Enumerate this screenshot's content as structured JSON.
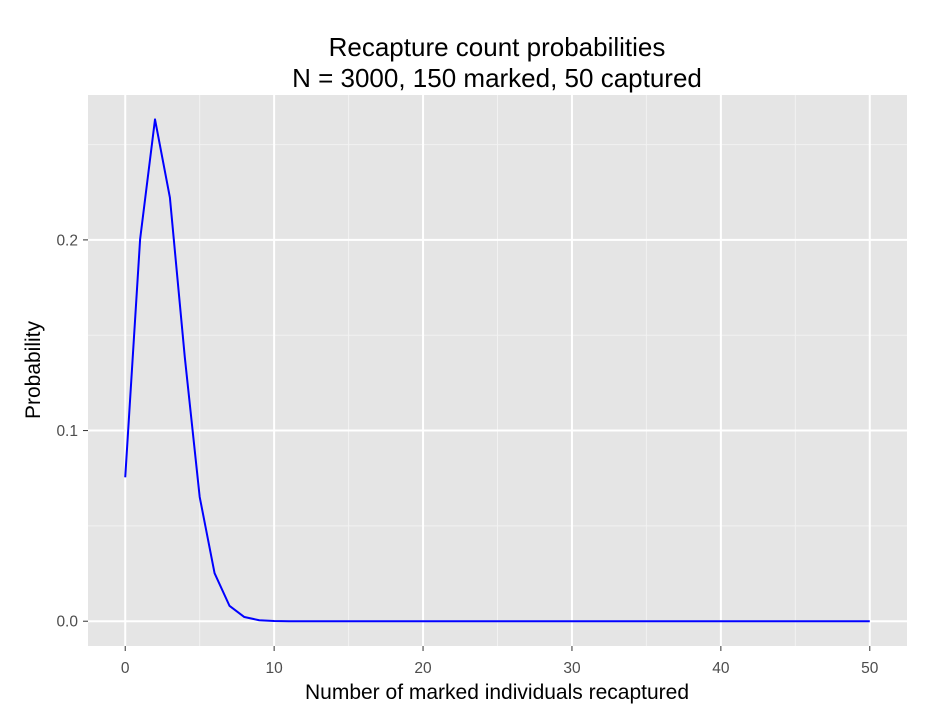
{
  "chart_data": {
    "type": "line",
    "title_lines": [
      "Recapture count probabilities",
      "N = 3000, 150 marked, 50 captured"
    ],
    "xlabel": "Number of marked individuals recaptured",
    "ylabel": "Probability",
    "xlim": [
      -2.5,
      52.5
    ],
    "ylim": [
      -0.013,
      0.276
    ],
    "x_ticks": [
      0,
      10,
      20,
      30,
      40,
      50
    ],
    "x_tick_labels": [
      "0",
      "10",
      "20",
      "30",
      "40",
      "50"
    ],
    "y_ticks": [
      0.0,
      0.1,
      0.2
    ],
    "y_tick_labels": [
      "0.0",
      "0.1",
      "0.2"
    ],
    "x_minor_ticks": [
      5,
      15,
      25,
      35,
      45
    ],
    "y_minor_ticks": [
      0.05,
      0.15,
      0.25
    ],
    "grid": true,
    "series": [
      {
        "color": "#0000ff",
        "x": [
          0,
          1,
          2,
          3,
          4,
          5,
          6,
          7,
          8,
          9,
          10,
          11,
          12,
          13,
          14,
          15,
          16,
          17,
          18,
          19,
          20,
          21,
          22,
          23,
          24,
          25,
          26,
          27,
          28,
          29,
          30,
          31,
          32,
          33,
          34,
          35,
          36,
          37,
          38,
          39,
          40,
          41,
          42,
          43,
          44,
          45,
          46,
          47,
          48,
          49,
          50
        ],
        "y": [
          0.0755,
          0.2004,
          0.2632,
          0.2222,
          0.1385,
          0.0652,
          0.0252,
          0.0081,
          0.0022,
          0.0005,
          0.0001,
          0,
          0,
          0,
          0,
          0,
          0,
          0,
          0,
          0,
          0,
          0,
          0,
          0,
          0,
          0,
          0,
          0,
          0,
          0,
          0,
          0,
          0,
          0,
          0,
          0,
          0,
          0,
          0,
          0,
          0,
          0,
          0,
          0,
          0,
          0,
          0,
          0,
          0,
          0,
          0
        ]
      }
    ]
  },
  "colors": {
    "panel_background": "#e5e5e5",
    "major_grid": "#ffffff",
    "minor_grid": "#f2f2f2",
    "line": "#0000ff"
  }
}
